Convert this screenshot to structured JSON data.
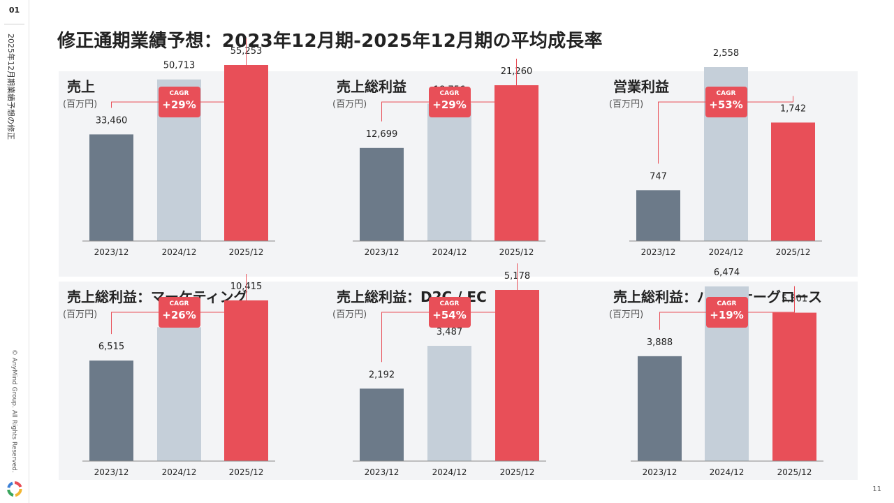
{
  "slide": {
    "page_label": "01",
    "side_title": "2025年12月期業績予想の修正",
    "copyright": "© AnyMind Group. All Rights Reserved.",
    "title": "修正通期業績予想：2023年12月期-2025年12月期の平均成長率",
    "page_number": "11"
  },
  "colors": {
    "bar_2023": "#6c7a89",
    "bar_2024": "#c5cfd9",
    "bar_2025": "#e84f58",
    "accent": "#e84f58"
  },
  "chart_data": [
    {
      "type": "bar",
      "title": "売上",
      "unit": "(百万円)",
      "cagr_label": "CAGR",
      "cagr": "+29%",
      "categories": [
        "2023/12",
        "2024/12",
        "2025/12"
      ],
      "values": [
        33460,
        50713,
        55253
      ],
      "value_labels": [
        "33,460",
        "50,713",
        "55,253"
      ]
    },
    {
      "type": "bar",
      "title": "売上総利益",
      "unit": "(百万円)",
      "cagr_label": "CAGR",
      "cagr": "+29%",
      "categories": [
        "2023/12",
        "2024/12",
        "2025/12"
      ],
      "values": [
        12699,
        18756,
        21260
      ],
      "value_labels": [
        "12,699",
        "18,756",
        "21,260"
      ]
    },
    {
      "type": "bar",
      "title": "営業利益",
      "unit": "(百万円)",
      "cagr_label": "CAGR",
      "cagr": "+53%",
      "categories": [
        "2023/12",
        "2024/12",
        "2025/12"
      ],
      "values": [
        747,
        2558,
        1742
      ],
      "value_labels": [
        "747",
        "2,558",
        "1,742"
      ]
    },
    {
      "type": "bar",
      "title": "売上総利益：マーケティング",
      "unit": "(百万円)",
      "cagr_label": "CAGR",
      "cagr": "+26%",
      "categories": [
        "2023/12",
        "2024/12",
        "2025/12"
      ],
      "values": [
        6515,
        8678,
        10415
      ],
      "value_labels": [
        "6,515",
        "8,678",
        "10,415"
      ]
    },
    {
      "type": "bar",
      "title": "売上総利益：D2C / EC",
      "unit": "(百万円)",
      "cagr_label": "CAGR",
      "cagr": "+54%",
      "categories": [
        "2023/12",
        "2024/12",
        "2025/12"
      ],
      "values": [
        2192,
        3487,
        5178
      ],
      "value_labels": [
        "2,192",
        "3,487",
        "5,178"
      ]
    },
    {
      "type": "bar",
      "title": "売上総利益：パートナーグロース",
      "unit": "(百万円)",
      "cagr_label": "CAGR",
      "cagr": "+19%",
      "categories": [
        "2023/12",
        "2024/12",
        "2025/12"
      ],
      "values": [
        3888,
        6474,
        5501
      ],
      "value_labels": [
        "3,888",
        "6,474",
        "5,501"
      ]
    }
  ]
}
